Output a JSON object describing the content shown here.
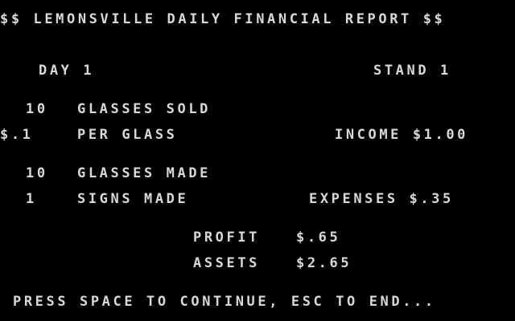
{
  "report": {
    "title": "$$ LEMONSVILLE DAILY FINANCIAL REPORT $$",
    "day": "DAY 1",
    "stand": "STAND 1",
    "glasses_sold_count": "10",
    "glasses_sold_label": "GLASSES SOLD",
    "price": "$.1",
    "price_label": "PER GLASS",
    "income": "INCOME $1.00",
    "glasses_made_count": "10",
    "glasses_made_label": "GLASSES MADE",
    "signs_made_count": "1",
    "signs_made_label": "SIGNS MADE",
    "expenses": "EXPENSES $.35",
    "profit_label": "PROFIT",
    "profit_value": "$.65",
    "assets_label": "ASSETS",
    "assets_value": "$2.65"
  },
  "prompt": {
    "text": "PRESS SPACE TO CONTINUE, ESC TO END..."
  },
  "colors": {
    "background": "#000000",
    "text": "#d8d8d8"
  }
}
